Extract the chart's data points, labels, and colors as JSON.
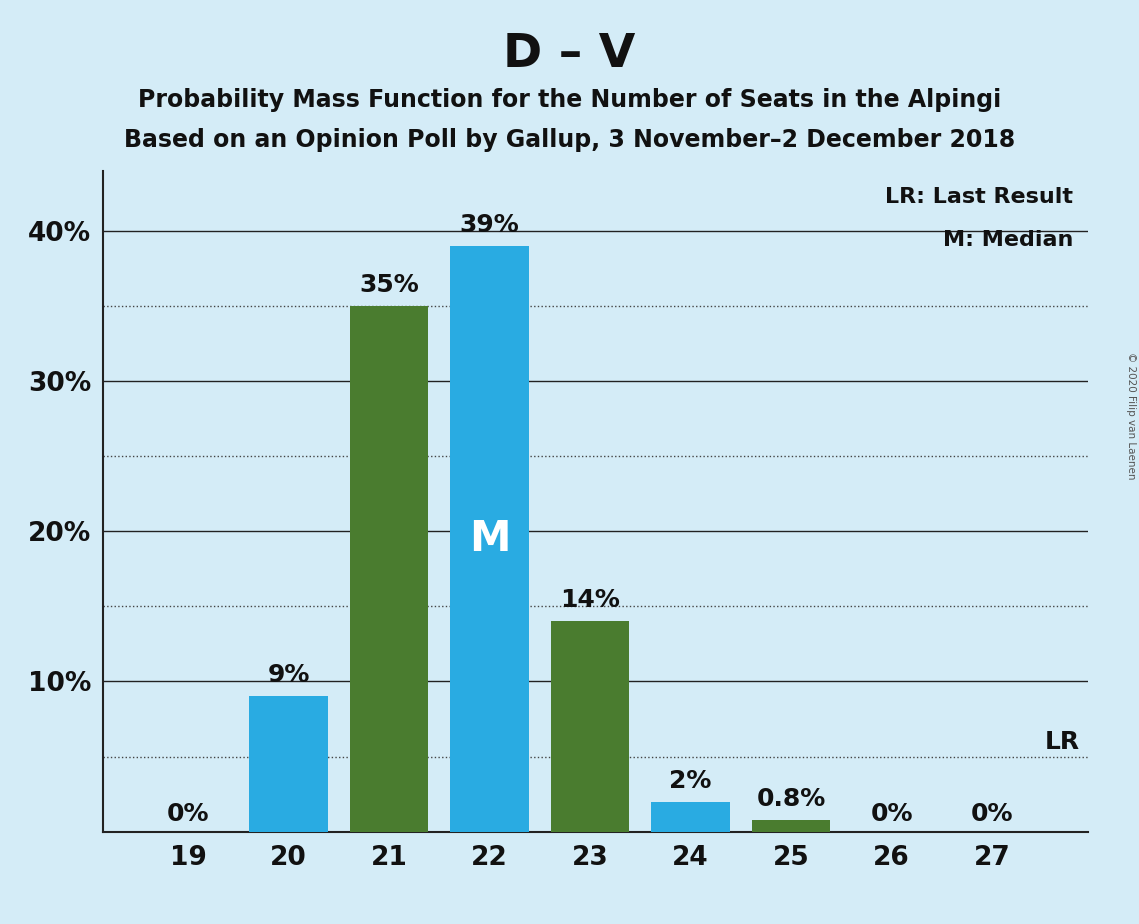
{
  "title": "D – V",
  "subtitle1": "Probability Mass Function for the Number of Seats in the Alpingi",
  "subtitle2": "Based on an Opinion Poll by Gallup, 3 November–2 December 2018",
  "copyright": "© 2020 Filip van Laenen",
  "seats": [
    19,
    20,
    21,
    22,
    23,
    24,
    25,
    26,
    27
  ],
  "values": [
    0.0,
    9.0,
    35.0,
    39.0,
    14.0,
    2.0,
    0.8,
    0.0,
    0.0
  ],
  "bar_colors": [
    "#29abe2",
    "#29abe2",
    "#4a7c2f",
    "#29abe2",
    "#4a7c2f",
    "#29abe2",
    "#4a7c2f",
    "#29abe2",
    "#29abe2"
  ],
  "labels": [
    "0%",
    "9%",
    "35%",
    "39%",
    "14%",
    "2%",
    "0.8%",
    "0%",
    "0%"
  ],
  "median_seat": 22,
  "lr_value": 5.0,
  "ylim_max": 44,
  "solid_yticks": [
    10,
    20,
    30,
    40
  ],
  "dotted_yticks": [
    5,
    15,
    25,
    35
  ],
  "ytick_labels_solid": [
    "10%",
    "20%",
    "30%",
    "40%"
  ],
  "background_color": "#d4ecf7",
  "bar_width": 0.78,
  "legend_lr": "LR: Last Result",
  "legend_m": "M: Median",
  "title_fontsize": 34,
  "subtitle_fontsize": 17,
  "label_fontsize": 18,
  "axis_fontsize": 19,
  "legend_fontsize": 16
}
